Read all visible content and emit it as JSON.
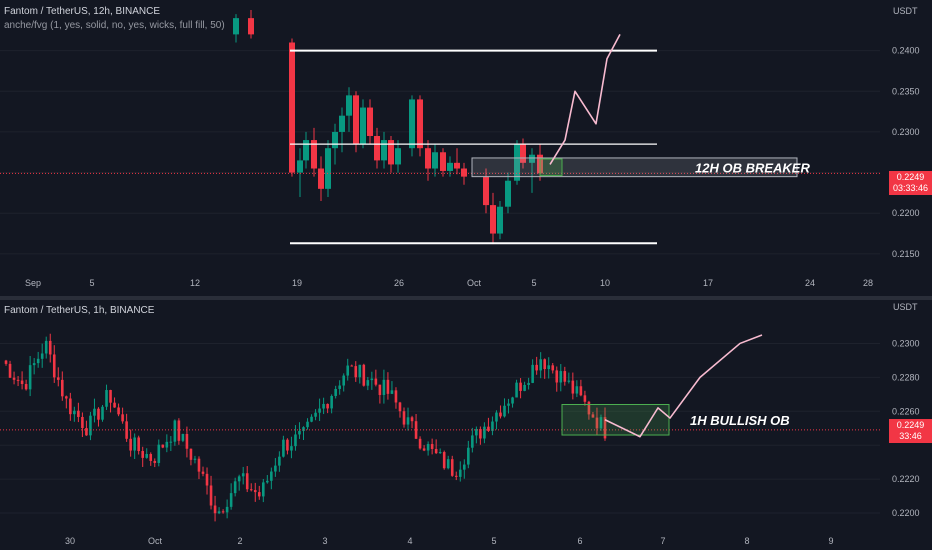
{
  "top": {
    "title": "Fantom / TetherUS, 12h, BINANCE",
    "indicator": "anche/fvg (1, yes, solid, no, yes, wicks, full fill, 50)",
    "currency": "USDT",
    "price_label": "0.2249",
    "countdown": "03:33:46",
    "annotation": "12H OB BREAKER",
    "colors": {
      "up": "#089981",
      "down": "#f23645",
      "line": "#ffffff",
      "sketch": "#f8bbd0"
    }
  },
  "bottom": {
    "title": "Fantom / TetherUS, 1h, BINANCE",
    "currency": "USDT",
    "price_label": "0.2249",
    "countdown": "33:46",
    "annotation": "1H BULLISH OB",
    "colors": {
      "up": "#089981",
      "down": "#f23645",
      "box": "#4caf50",
      "sketch": "#f8bbd0"
    }
  },
  "chart_data": [
    {
      "type": "candlestick",
      "title": "Fantom / TetherUS, 12h, BINANCE",
      "timeframe": "12h",
      "current_price": 0.2249,
      "y_ticks": [
        0.24,
        0.235,
        0.23,
        0.225,
        0.22,
        0.215
      ],
      "y_tick_labels": [
        "0.2400",
        "0.2350",
        "0.2300",
        "",
        "0.2200",
        "0.2150"
      ],
      "ylim": [
        0.214,
        0.245
      ],
      "x_tick_labels": [
        "Sep",
        "5",
        "12",
        "19",
        "26",
        "Oct",
        "5",
        "10",
        "17",
        "24",
        "28"
      ],
      "candles": [
        [
          0.242,
          0.2445,
          0.241,
          0.244
        ],
        [
          0.244,
          0.245,
          0.2415,
          0.242
        ],
        [
          0.241,
          0.2415,
          0.2245,
          0.225
        ],
        [
          0.225,
          0.228,
          0.222,
          0.2265
        ],
        [
          0.2265,
          0.23,
          0.2255,
          0.229
        ],
        [
          0.229,
          0.2305,
          0.2245,
          0.2255
        ],
        [
          0.2255,
          0.227,
          0.2215,
          0.223
        ],
        [
          0.223,
          0.229,
          0.222,
          0.228
        ],
        [
          0.228,
          0.231,
          0.226,
          0.23
        ],
        [
          0.23,
          0.233,
          0.2275,
          0.232
        ],
        [
          0.232,
          0.2355,
          0.23,
          0.2345
        ],
        [
          0.2345,
          0.235,
          0.2275,
          0.2285
        ],
        [
          0.2285,
          0.234,
          0.228,
          0.233
        ],
        [
          0.233,
          0.234,
          0.2285,
          0.2295
        ],
        [
          0.2295,
          0.2305,
          0.2255,
          0.2265
        ],
        [
          0.2265,
          0.23,
          0.2255,
          0.229
        ],
        [
          0.229,
          0.2295,
          0.225,
          0.226
        ],
        [
          0.226,
          0.229,
          0.225,
          0.228
        ],
        [
          0.228,
          0.2345,
          0.227,
          0.234
        ],
        [
          0.234,
          0.2345,
          0.227,
          0.228
        ],
        [
          0.228,
          0.229,
          0.224,
          0.2255
        ],
        [
          0.2255,
          0.2285,
          0.2245,
          0.2275
        ],
        [
          0.2275,
          0.228,
          0.2245,
          0.2252
        ],
        [
          0.2252,
          0.227,
          0.2245,
          0.2262
        ],
        [
          0.2262,
          0.228,
          0.2248,
          0.2255
        ],
        [
          0.2255,
          0.2262,
          0.2235,
          0.2245
        ],
        [
          0.2245,
          0.2255,
          0.22,
          0.221
        ],
        [
          0.221,
          0.2225,
          0.2162,
          0.2175
        ],
        [
          0.2175,
          0.2215,
          0.2168,
          0.2208
        ],
        [
          0.2208,
          0.225,
          0.22,
          0.224
        ],
        [
          0.224,
          0.229,
          0.2235,
          0.2285
        ],
        [
          0.2285,
          0.2292,
          0.2255,
          0.2262
        ],
        [
          0.2262,
          0.228,
          0.2225,
          0.2272
        ],
        [
          0.2272,
          0.2285,
          0.224,
          0.2249
        ]
      ],
      "horizontal_levels": [
        0.24,
        0.2285,
        0.2163
      ],
      "zone": {
        "top": 0.2268,
        "bottom": 0.2245,
        "label": "12H OB BREAKER"
      },
      "sketch_path": [
        0.226,
        0.229,
        0.235,
        0.231,
        0.239,
        0.242
      ]
    },
    {
      "type": "candlestick",
      "title": "Fantom / TetherUS, 1h, BINANCE",
      "timeframe": "1h",
      "current_price": 0.2249,
      "y_ticks": [
        0.23,
        0.228,
        0.226,
        0.224,
        0.222,
        0.22
      ],
      "y_tick_labels": [
        "0.2300",
        "0.2280",
        "0.2260",
        "",
        "0.2220",
        "0.2200"
      ],
      "ylim": [
        0.219,
        0.2315
      ],
      "x_tick_labels": [
        "30",
        "Oct",
        "2",
        "3",
        "4",
        "5",
        "6",
        "7",
        "8",
        "9"
      ],
      "key_points": [
        0.229,
        0.2275,
        0.23,
        0.2265,
        0.225,
        0.227,
        0.224,
        0.2232,
        0.225,
        0.223,
        0.22,
        0.222,
        0.221,
        0.224,
        0.2245,
        0.2265,
        0.2285,
        0.228,
        0.227,
        0.225,
        0.2235,
        0.2225,
        0.2245,
        0.226,
        0.2275,
        0.2292,
        0.228,
        0.2265,
        0.2249
      ],
      "zone": {
        "top": 0.2264,
        "bottom": 0.2246,
        "label": "1H BULLISH OB"
      },
      "sketch_path": [
        0.2255,
        0.2245,
        0.2262,
        0.2256,
        0.228,
        0.23,
        0.2305
      ]
    }
  ]
}
